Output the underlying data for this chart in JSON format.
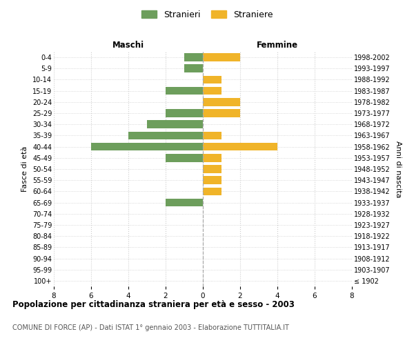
{
  "age_groups": [
    "100+",
    "95-99",
    "90-94",
    "85-89",
    "80-84",
    "75-79",
    "70-74",
    "65-69",
    "60-64",
    "55-59",
    "50-54",
    "45-49",
    "40-44",
    "35-39",
    "30-34",
    "25-29",
    "20-24",
    "15-19",
    "10-14",
    "5-9",
    "0-4"
  ],
  "birth_years": [
    "≤ 1902",
    "1903-1907",
    "1908-1912",
    "1913-1917",
    "1918-1922",
    "1923-1927",
    "1928-1932",
    "1933-1937",
    "1938-1942",
    "1943-1947",
    "1948-1952",
    "1953-1957",
    "1958-1962",
    "1963-1967",
    "1968-1972",
    "1973-1977",
    "1978-1982",
    "1983-1987",
    "1988-1992",
    "1993-1997",
    "1998-2002"
  ],
  "males": [
    0,
    0,
    0,
    0,
    0,
    0,
    0,
    2,
    0,
    0,
    0,
    2,
    6,
    4,
    3,
    2,
    0,
    2,
    0,
    1,
    1
  ],
  "females": [
    0,
    0,
    0,
    0,
    0,
    0,
    0,
    0,
    1,
    1,
    1,
    1,
    4,
    1,
    0,
    2,
    2,
    1,
    1,
    0,
    2
  ],
  "male_color": "#6d9e5c",
  "female_color": "#f0b429",
  "grid_color": "#cccccc",
  "background_color": "#ffffff",
  "title": "Popolazione per cittadinanza straniera per età e sesso - 2003",
  "subtitle": "COMUNE DI FORCE (AP) - Dati ISTAT 1° gennaio 2003 - Elaborazione TUTTITALIA.IT",
  "xlabel_left": "Maschi",
  "xlabel_right": "Femmine",
  "ylabel_left": "Fasce di età",
  "ylabel_right": "Anni di nascita",
  "legend_stranieri": "Stranieri",
  "legend_straniere": "Straniere",
  "xlim": 8,
  "dashed_line_color": "#aaaaaa"
}
